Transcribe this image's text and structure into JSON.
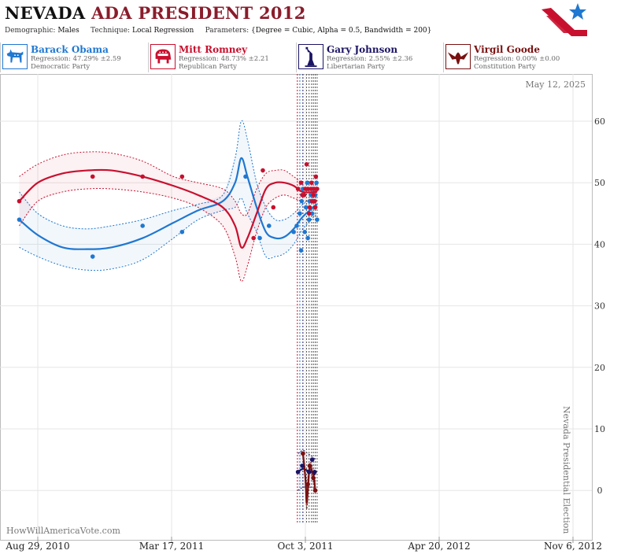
{
  "header": {
    "state": "NEVADA",
    "rest": "ADA PRESIDENT 2012",
    "demographic_key": "Demographic:",
    "demographic": "Males",
    "technique_key": "Technique:",
    "technique": "Local Regression",
    "parameters_key": "Parameters:",
    "parameters": "{Degree = Cubic, Alpha = 0.5, Bandwidth = 200}"
  },
  "candidates": [
    {
      "name": "Barack Obama",
      "regression": "Regression: 47.29% ±2.59",
      "party": "Democratic Party",
      "color": "#1f78d1",
      "icon": "donkey-icon"
    },
    {
      "name": "Mitt Romney",
      "regression": "Regression: 48.73% ±2.21",
      "party": "Republican Party",
      "color": "#c8102e",
      "icon": "elephant-icon"
    },
    {
      "name": "Gary Johnson",
      "regression": "Regression: 2.55% ±2.36",
      "party": "Libertarian Party",
      "color": "#1b1464",
      "icon": "liberty-statue-icon"
    },
    {
      "name": "Virgil Goode",
      "regression": "Regression: 0.00% ±0.00",
      "party": "Constitution Party",
      "color": "#7a1010",
      "icon": "eagle-icon"
    }
  ],
  "chart_data": {
    "type": "scatter",
    "date_label": "May 12, 2025",
    "vertical_label": "Nevada Presidential Election",
    "watermark": "HowWillAmericaVote.com",
    "x_ticks": [
      "Aug 29, 2010",
      "Mar 17, 2011",
      "Oct 3, 2011",
      "Apr 20, 2012",
      "Nov 6, 2012"
    ],
    "y_ticks": [
      0,
      10,
      20,
      30,
      40,
      50,
      60
    ],
    "ylim": [
      -5,
      67
    ],
    "grid": true,
    "series": [
      {
        "name": "Barack Obama",
        "color": "#1f78d1",
        "points": [
          [
            -30,
            44
          ],
          [
            89,
            38
          ],
          [
            170,
            43
          ],
          [
            234,
            42
          ],
          [
            337,
            51
          ],
          [
            360,
            41
          ],
          [
            375,
            43
          ],
          [
            415,
            42
          ],
          [
            420,
            43
          ],
          [
            425,
            45
          ],
          [
            427,
            39
          ],
          [
            428,
            47
          ],
          [
            430,
            49
          ],
          [
            433,
            42
          ],
          [
            435,
            46
          ],
          [
            437,
            50
          ],
          [
            438,
            41
          ],
          [
            440,
            44
          ],
          [
            441,
            47
          ],
          [
            443,
            48
          ],
          [
            445,
            45
          ],
          [
            446,
            49
          ],
          [
            448,
            47
          ],
          [
            449,
            46
          ],
          [
            450,
            48
          ],
          [
            452,
            50
          ],
          [
            453,
            44
          ]
        ],
        "trend": [
          [
            -30,
            44
          ],
          [
            0,
            41.5
          ],
          [
            40,
            39.5
          ],
          [
            80,
            39.2
          ],
          [
            120,
            39.5
          ],
          [
            170,
            41
          ],
          [
            220,
            43.5
          ],
          [
            260,
            45.5
          ],
          [
            300,
            47
          ],
          [
            320,
            50
          ],
          [
            330,
            54
          ],
          [
            340,
            51
          ],
          [
            355,
            46
          ],
          [
            370,
            42
          ],
          [
            385,
            41
          ],
          [
            400,
            41.2
          ],
          [
            415,
            42.5
          ],
          [
            430,
            44.5
          ],
          [
            453,
            46.5
          ]
        ],
        "band_upper": [
          [
            -30,
            48.5
          ],
          [
            0,
            45
          ],
          [
            40,
            43
          ],
          [
            80,
            42.5
          ],
          [
            120,
            43
          ],
          [
            170,
            44
          ],
          [
            220,
            45.5
          ],
          [
            260,
            46.5
          ],
          [
            300,
            48
          ],
          [
            320,
            54
          ],
          [
            330,
            60
          ],
          [
            340,
            57
          ],
          [
            355,
            50
          ],
          [
            370,
            46
          ],
          [
            385,
            44
          ],
          [
            400,
            44
          ],
          [
            415,
            45
          ],
          [
            430,
            46.5
          ],
          [
            453,
            48
          ]
        ],
        "band_lower": [
          [
            -30,
            39.5
          ],
          [
            0,
            38
          ],
          [
            40,
            36.5
          ],
          [
            80,
            35.8
          ],
          [
            120,
            36
          ],
          [
            170,
            37.5
          ],
          [
            220,
            41
          ],
          [
            260,
            44
          ],
          [
            300,
            45.5
          ],
          [
            320,
            46
          ],
          [
            330,
            47.5
          ],
          [
            340,
            45
          ],
          [
            355,
            42
          ],
          [
            370,
            38
          ],
          [
            385,
            38
          ],
          [
            400,
            38.5
          ],
          [
            415,
            40
          ],
          [
            430,
            42.5
          ],
          [
            453,
            45
          ]
        ]
      },
      {
        "name": "Mitt Romney",
        "color": "#c8102e",
        "points": [
          [
            -30,
            47
          ],
          [
            89,
            51
          ],
          [
            170,
            51
          ],
          [
            234,
            51
          ],
          [
            350,
            41
          ],
          [
            365,
            52
          ],
          [
            382,
            46
          ],
          [
            422,
            49
          ],
          [
            427,
            50
          ],
          [
            429,
            48
          ],
          [
            432,
            48
          ],
          [
            434,
            49
          ],
          [
            436,
            53
          ],
          [
            438,
            49
          ],
          [
            440,
            45
          ],
          [
            441,
            46
          ],
          [
            443,
            49
          ],
          [
            444,
            50
          ],
          [
            445,
            47
          ],
          [
            447,
            48
          ],
          [
            448,
            49
          ],
          [
            449,
            47
          ],
          [
            450,
            46
          ],
          [
            451,
            51
          ],
          [
            452,
            49
          ],
          [
            453,
            49
          ]
        ],
        "trend": [
          [
            -30,
            47
          ],
          [
            0,
            50
          ],
          [
            40,
            51.5
          ],
          [
            80,
            52
          ],
          [
            120,
            52
          ],
          [
            170,
            51
          ],
          [
            220,
            49.5
          ],
          [
            260,
            48
          ],
          [
            300,
            46
          ],
          [
            320,
            43
          ],
          [
            330,
            39.5
          ],
          [
            340,
            41
          ],
          [
            355,
            45
          ],
          [
            370,
            49
          ],
          [
            385,
            50
          ],
          [
            400,
            50
          ],
          [
            415,
            49.5
          ],
          [
            430,
            48.5
          ],
          [
            453,
            48.5
          ]
        ],
        "band_upper": [
          [
            -30,
            51
          ],
          [
            0,
            53
          ],
          [
            40,
            54.5
          ],
          [
            80,
            55
          ],
          [
            120,
            54.8
          ],
          [
            170,
            53.5
          ],
          [
            220,
            51
          ],
          [
            260,
            50
          ],
          [
            300,
            49
          ],
          [
            320,
            47
          ],
          [
            330,
            45
          ],
          [
            340,
            45
          ],
          [
            355,
            49
          ],
          [
            370,
            51.5
          ],
          [
            385,
            52
          ],
          [
            400,
            52
          ],
          [
            415,
            51
          ],
          [
            430,
            50
          ],
          [
            453,
            50
          ]
        ],
        "band_lower": [
          [
            -30,
            43
          ],
          [
            0,
            47
          ],
          [
            40,
            48.5
          ],
          [
            80,
            49
          ],
          [
            120,
            49
          ],
          [
            170,
            48.5
          ],
          [
            220,
            47.5
          ],
          [
            260,
            46
          ],
          [
            300,
            43
          ],
          [
            320,
            38
          ],
          [
            330,
            34
          ],
          [
            340,
            36.5
          ],
          [
            355,
            42
          ],
          [
            370,
            46
          ],
          [
            385,
            47.5
          ],
          [
            400,
            48
          ],
          [
            415,
            47.5
          ],
          [
            430,
            47
          ],
          [
            453,
            47
          ]
        ]
      },
      {
        "name": "Gary Johnson",
        "color": "#1b1464",
        "points": [
          [
            422,
            3
          ],
          [
            429,
            4
          ],
          [
            440,
            3
          ],
          [
            445,
            5
          ],
          [
            449,
            3
          ]
        ],
        "trend": [
          [
            422,
            3
          ],
          [
            430,
            3.5
          ],
          [
            438,
            3.2
          ],
          [
            445,
            3
          ],
          [
            450,
            2.6
          ]
        ],
        "band_upper": [
          [
            422,
            6
          ],
          [
            430,
            6.5
          ],
          [
            438,
            6
          ],
          [
            445,
            5.5
          ],
          [
            450,
            5
          ]
        ],
        "band_lower": [
          [
            422,
            0
          ],
          [
            430,
            0.5
          ],
          [
            438,
            0.5
          ],
          [
            445,
            0.5
          ],
          [
            450,
            0.2
          ]
        ]
      },
      {
        "name": "Virgil Goode",
        "color": "#7a1010",
        "points": [
          [
            430,
            6
          ],
          [
            438,
            1
          ],
          [
            441,
            4
          ],
          [
            447,
            2
          ],
          [
            450,
            0
          ]
        ],
        "trend": [
          [
            430,
            6
          ],
          [
            434,
            2
          ],
          [
            436,
            -2
          ],
          [
            438,
            0
          ],
          [
            441,
            4
          ],
          [
            445,
            3
          ],
          [
            448,
            2
          ],
          [
            450,
            0
          ]
        ],
        "band_upper": [
          [
            430,
            6
          ],
          [
            434,
            3
          ],
          [
            436,
            0
          ],
          [
            438,
            2
          ],
          [
            441,
            4.5
          ],
          [
            445,
            4
          ],
          [
            448,
            3
          ],
          [
            450,
            1
          ]
        ],
        "band_lower": [
          [
            430,
            6
          ],
          [
            434,
            1
          ],
          [
            436,
            -3
          ],
          [
            438,
            -1
          ],
          [
            441,
            3.5
          ],
          [
            445,
            2
          ],
          [
            448,
            1
          ],
          [
            450,
            0
          ]
        ]
      }
    ],
    "poll_date_lines": [
      421,
      425,
      430,
      436,
      440,
      444,
      447,
      450,
      453
    ],
    "poll_line_colors": [
      "#c8102e",
      "#1f78d1",
      "#1b1464",
      "#555",
      "#555",
      "#555",
      "#555",
      "#555",
      "#555"
    ]
  }
}
